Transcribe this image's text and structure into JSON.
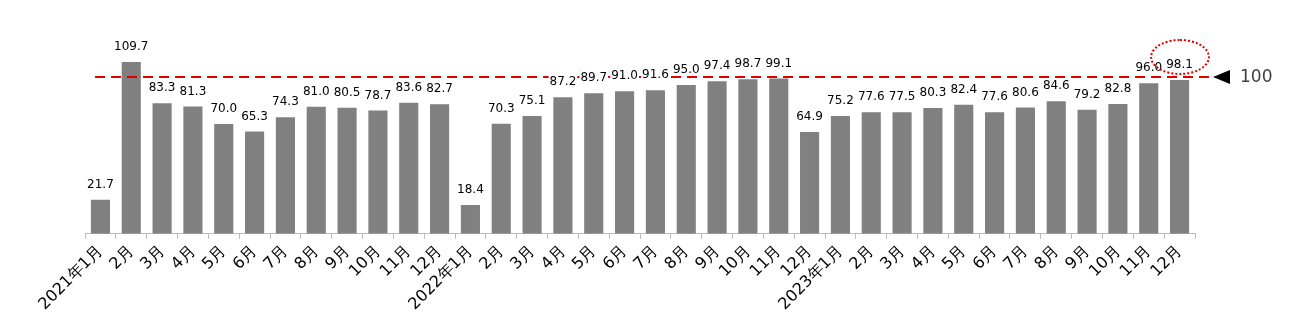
{
  "chart_data": {
    "type": "bar",
    "categories": [
      "2021年1月",
      "2月",
      "3月",
      "4月",
      "5月",
      "6月",
      "7月",
      "8月",
      "9月",
      "10月",
      "11月",
      "12月",
      "2022年1月",
      "2月",
      "3月",
      "4月",
      "5月",
      "6月",
      "7月",
      "8月",
      "9月",
      "10月",
      "11月",
      "12月",
      "2023年1月",
      "2月",
      "3月",
      "4月",
      "5月",
      "6月",
      "7月",
      "8月",
      "9月",
      "10月",
      "11月",
      "12月"
    ],
    "values": [
      21.7,
      109.7,
      83.3,
      81.3,
      70.0,
      65.3,
      74.3,
      81.0,
      80.5,
      78.7,
      83.6,
      82.7,
      18.4,
      70.3,
      75.1,
      87.2,
      89.7,
      91.0,
      91.6,
      95.0,
      97.4,
      98.7,
      99.1,
      64.9,
      75.2,
      77.6,
      77.5,
      80.3,
      82.4,
      77.6,
      80.6,
      84.6,
      79.2,
      82.8,
      96.0,
      98.1
    ],
    "value_labels": [
      "21.7",
      "109.7",
      "83.3",
      "81.3",
      "70.0",
      "65.3",
      "74.3",
      "81.0",
      "80.5",
      "78.7",
      "83.6",
      "82.7",
      "18.4",
      "70.3",
      "75.1",
      "87.2",
      "89.7",
      "91.0",
      "91.6",
      "95.0",
      "97.4",
      "98.7",
      "99.1",
      "64.9",
      "75.2",
      "77.6",
      "77.5",
      "80.3",
      "82.4",
      "77.6",
      "80.6",
      "84.6",
      "79.2",
      "82.8",
      "96.0",
      "98.1"
    ],
    "color": "#808080",
    "ref_lines": [
      {
        "axis": "y",
        "value": 100,
        "label": "100",
        "color": "#e00000",
        "line_style": "dashed"
      }
    ],
    "grid": false,
    "legend": false
  }
}
